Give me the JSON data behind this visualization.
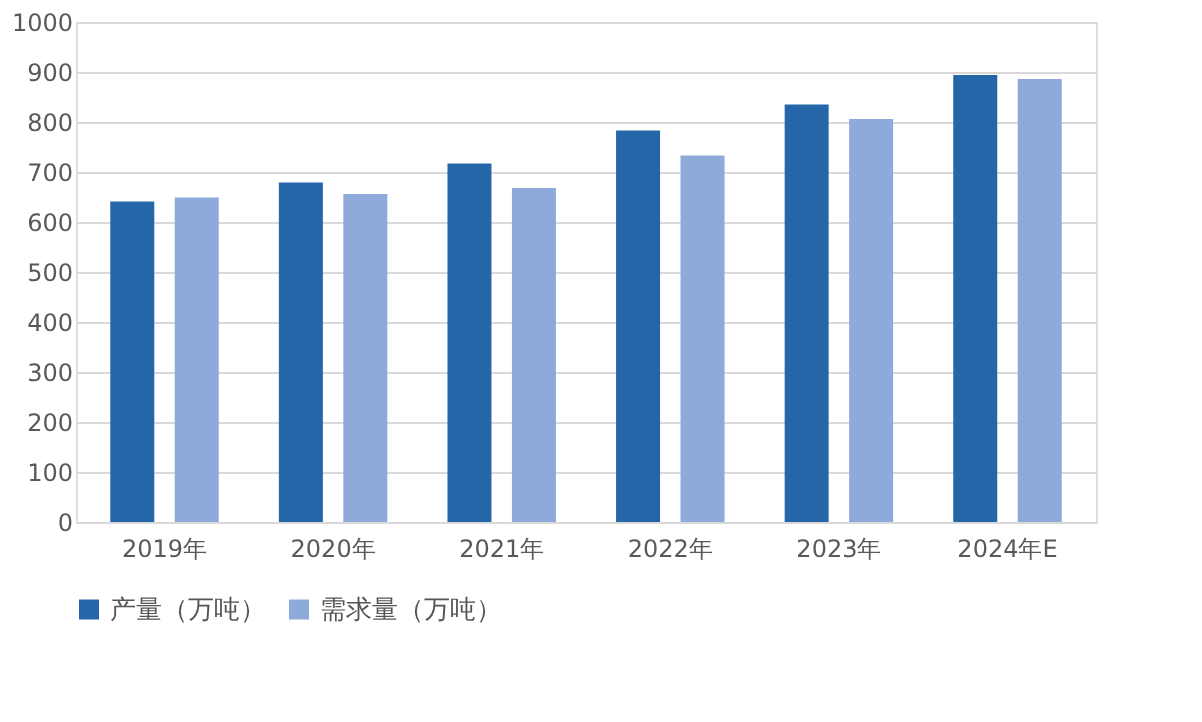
{
  "chart_data": {
    "type": "bar",
    "categories": [
      "2019年",
      "2020年",
      "2021年",
      "2022年",
      "2023年",
      "2024年E"
    ],
    "series": [
      {
        "name": "产量（万吨）",
        "color": "#2466a8",
        "values": [
          641,
          679,
          717,
          783,
          835,
          894
        ]
      },
      {
        "name": "需求量（万吨）",
        "color": "#8eaadb",
        "values": [
          649,
          656,
          668,
          733,
          806,
          886
        ]
      }
    ],
    "ylim": [
      0,
      1000
    ],
    "yticks": [
      0,
      100,
      200,
      300,
      400,
      500,
      600,
      700,
      800,
      900,
      1000
    ],
    "grid": "y",
    "legend": "bottom"
  }
}
